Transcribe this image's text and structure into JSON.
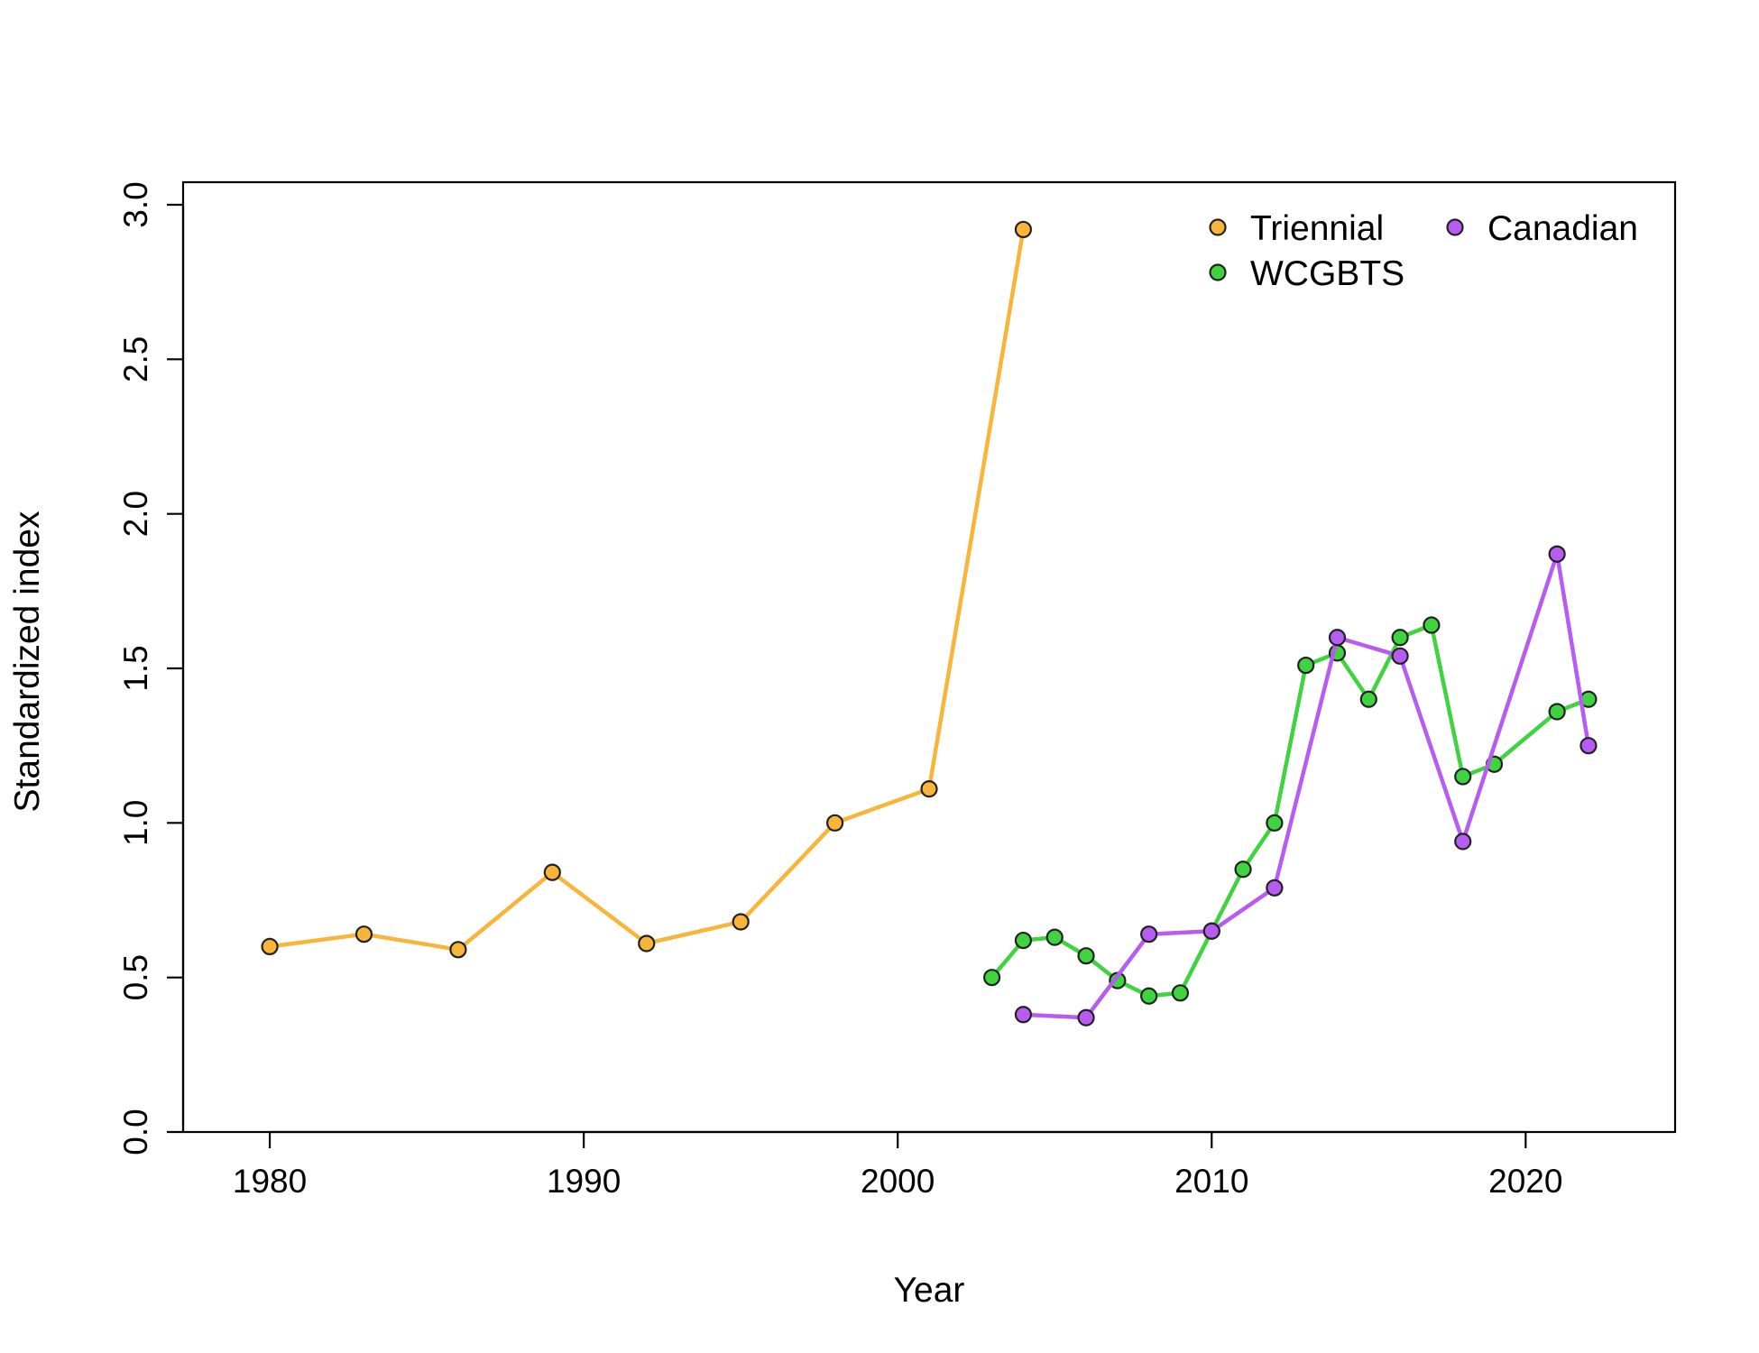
{
  "chart_data": {
    "type": "line",
    "title": "",
    "xlabel": "Year",
    "ylabel": "Standardized index",
    "xlim": [
      1977.24,
      2024.76
    ],
    "ylim": [
      0,
      3.0
    ],
    "xticks": [
      1980,
      1990,
      2000,
      2010,
      2020
    ],
    "yticks": [
      0.0,
      0.5,
      1.0,
      1.5,
      2.0,
      2.5,
      3.0
    ],
    "xtick_labels": [
      "1980",
      "1990",
      "2000",
      "2010",
      "2020"
    ],
    "ytick_labels": [
      "0.0",
      "0.5",
      "1.0",
      "1.5",
      "2.0",
      "2.5",
      "3.0"
    ],
    "grid": false,
    "legend_position": "top-right",
    "series": [
      {
        "name": "Triennial",
        "color": "#F9B43A",
        "x": [
          1980,
          1983,
          1986,
          1989,
          1992,
          1995,
          1998,
          2001,
          2004
        ],
        "y": [
          0.6,
          0.64,
          0.59,
          0.84,
          0.61,
          0.68,
          1.0,
          1.11,
          2.92
        ]
      },
      {
        "name": "WCGBTS",
        "color": "#3FD33F",
        "x": [
          2003,
          2004,
          2005,
          2006,
          2007,
          2008,
          2009,
          2010,
          2011,
          2012,
          2013,
          2014,
          2015,
          2016,
          2017,
          2018,
          2019,
          2021,
          2022
        ],
        "y": [
          0.5,
          0.62,
          0.63,
          0.57,
          0.49,
          0.44,
          0.45,
          0.65,
          0.85,
          1.0,
          1.51,
          1.55,
          1.4,
          1.6,
          1.64,
          1.15,
          1.19,
          1.36,
          1.4
        ]
      },
      {
        "name": "Canadian",
        "color": "#B65CF2",
        "x": [
          2004,
          2006,
          2008,
          2010,
          2012,
          2014,
          2016,
          2018,
          2021,
          2022
        ],
        "y": [
          0.38,
          0.37,
          0.64,
          0.65,
          0.79,
          1.6,
          1.54,
          0.94,
          1.87,
          1.25
        ]
      }
    ],
    "legend": [
      {
        "label": "Triennial",
        "color": "#F9B43A"
      },
      {
        "label": "Canadian",
        "color": "#B65CF2"
      },
      {
        "label": "WCGBTS",
        "color": "#3FD33F"
      }
    ]
  }
}
